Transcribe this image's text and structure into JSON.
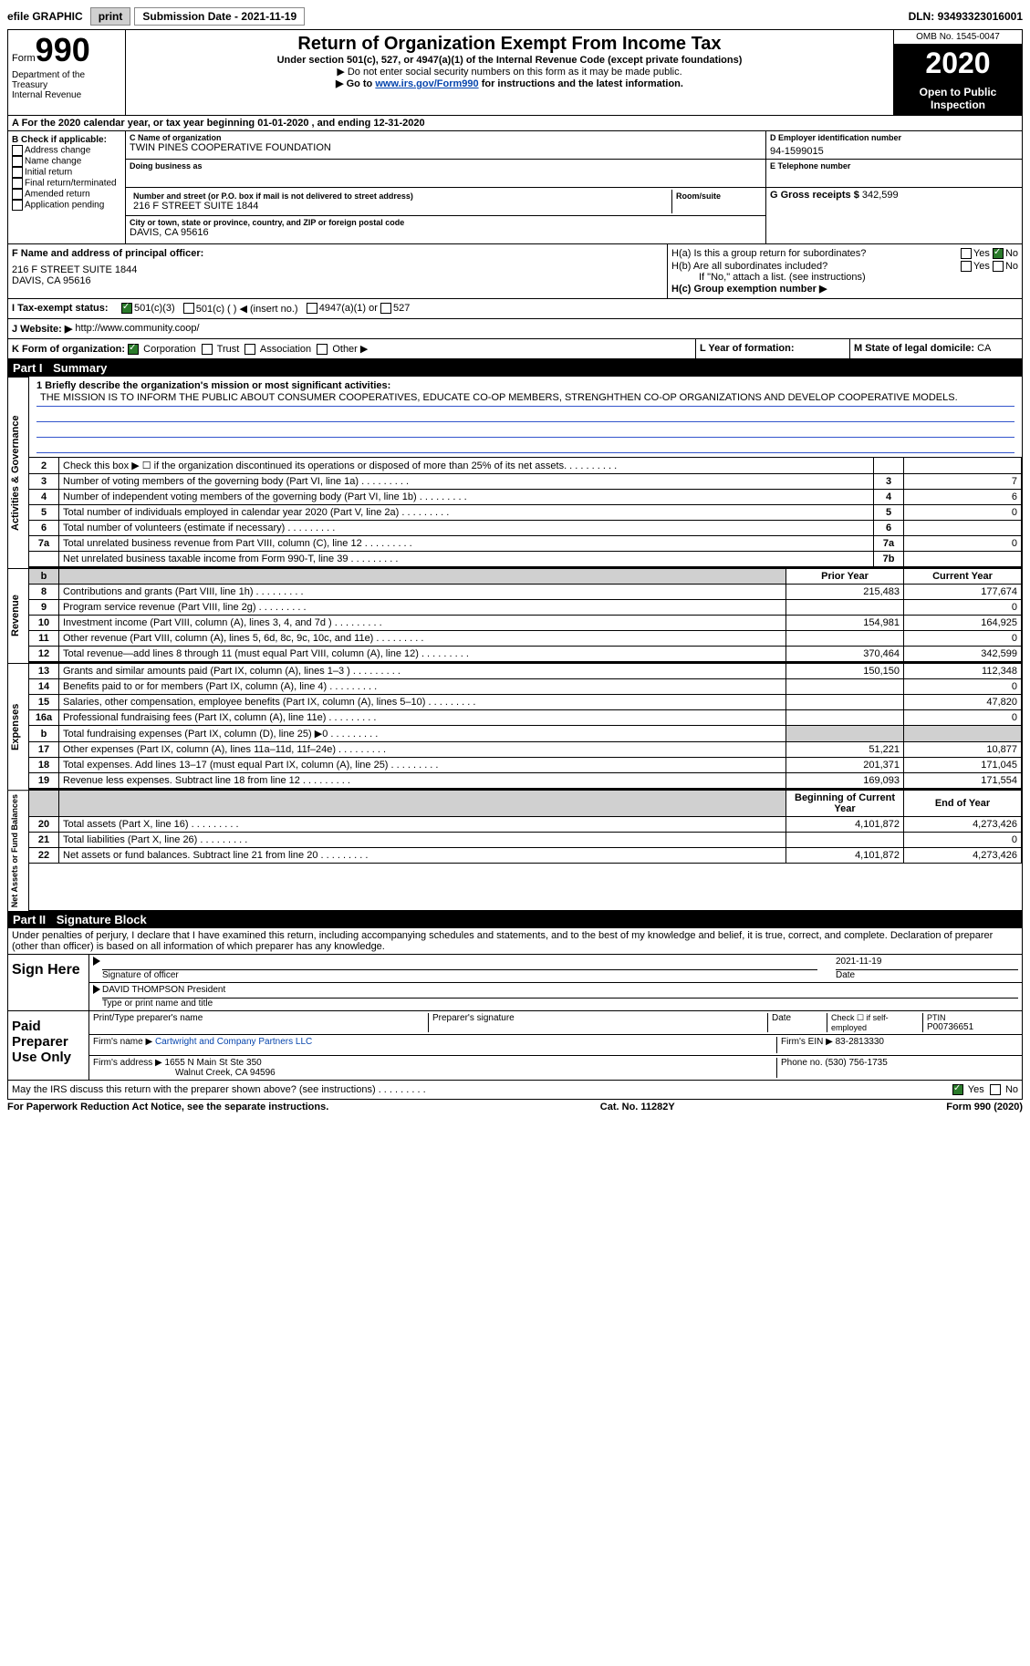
{
  "top": {
    "efile": "efile GRAPHIC",
    "print": "print",
    "sub_label": "Submission Date - ",
    "sub_date": "2021-11-19",
    "dln_label": "DLN: ",
    "dln": "93493323016001"
  },
  "header": {
    "form_label": "Form",
    "form_num": "990",
    "dept": "Department of the Treasury\nInternal Revenue",
    "title": "Return of Organization Exempt From Income Tax",
    "subtitle": "Under section 501(c), 527, or 4947(a)(1) of the Internal Revenue Code (except private foundations)",
    "note1": "▶ Do not enter social security numbers on this form as it may be made public.",
    "note2_pre": "▶ Go to ",
    "note2_link": "www.irs.gov/Form990",
    "note2_post": " for instructions and the latest information.",
    "omb": "OMB No. 1545-0047",
    "year": "2020",
    "open": "Open to Public Inspection"
  },
  "line_a": "A For the 2020 calendar year, or tax year beginning 01-01-2020    , and ending 12-31-2020",
  "b": {
    "hdr": "B Check if applicable:",
    "opts": [
      "Address change",
      "Name change",
      "Initial return",
      "Final return/terminated",
      "Amended return",
      "Application pending"
    ]
  },
  "c": {
    "name_hdr": "C Name of organization",
    "name": "TWIN PINES COOPERATIVE FOUNDATION",
    "dba_hdr": "Doing business as",
    "dba": "",
    "addr_hdr": "Number and street (or P.O. box if mail is not delivered to street address)",
    "room_hdr": "Room/suite",
    "addr": "216 F STREET SUITE 1844",
    "city_hdr": "City or town, state or province, country, and ZIP or foreign postal code",
    "city": "DAVIS, CA  95616"
  },
  "d": {
    "hdr": "D Employer identification number",
    "ein": "94-1599015"
  },
  "e": {
    "hdr": "E Telephone number",
    "val": ""
  },
  "g": {
    "label": "G Gross receipts $ ",
    "val": "342,599"
  },
  "f": {
    "hdr": "F  Name and address of principal officer:",
    "name": "",
    "addr": "216 F STREET SUITE 1844\nDAVIS, CA  95616"
  },
  "h": {
    "a": "H(a)  Is this a group return for subordinates?",
    "b": "H(b)  Are all subordinates included?",
    "b_note": "If \"No,\" attach a list. (see instructions)",
    "c": "H(c)  Group exemption number ▶",
    "yes": "Yes",
    "no": "No"
  },
  "i": {
    "label": "I    Tax-exempt status:",
    "o1": "501(c)(3)",
    "o2": "501(c) (   ) ◀ (insert no.)",
    "o3": "4947(a)(1) or",
    "o4": "527"
  },
  "j": {
    "label": "J   Website: ▶",
    "url": "http://www.community.coop/"
  },
  "k": {
    "label": "K Form of organization:",
    "o1": "Corporation",
    "o2": "Trust",
    "o3": "Association",
    "o4": "Other ▶"
  },
  "l": {
    "label": "L Year of formation:",
    "val": ""
  },
  "m": {
    "label": "M State of legal domicile: ",
    "val": "CA"
  },
  "part1": {
    "hdr": "Part I",
    "title": "Summary"
  },
  "mission": {
    "q": "1  Briefly describe the organization's mission or most significant activities:",
    "text": "THE MISSION IS TO INFORM THE PUBLIC ABOUT CONSUMER COOPERATIVES, EDUCATE CO-OP MEMBERS, STRENGHTHEN CO-OP ORGANIZATIONS AND DEVELOP COOPERATIVE MODELS."
  },
  "gov_lines": [
    {
      "n": "2",
      "d": "Check this box ▶ ☐  if the organization discontinued its operations or disposed of more than 25% of its net assets.",
      "b": "",
      "v": ""
    },
    {
      "n": "3",
      "d": "Number of voting members of the governing body (Part VI, line 1a)",
      "b": "3",
      "v": "7"
    },
    {
      "n": "4",
      "d": "Number of independent voting members of the governing body (Part VI, line 1b)",
      "b": "4",
      "v": "6"
    },
    {
      "n": "5",
      "d": "Total number of individuals employed in calendar year 2020 (Part V, line 2a)",
      "b": "5",
      "v": "0"
    },
    {
      "n": "6",
      "d": "Total number of volunteers (estimate if necessary)",
      "b": "6",
      "v": ""
    },
    {
      "n": "7a",
      "d": "Total unrelated business revenue from Part VIII, column (C), line 12",
      "b": "7a",
      "v": "0"
    },
    {
      "n": "",
      "d": "Net unrelated business taxable income from Form 990-T, line 39",
      "b": "7b",
      "v": ""
    }
  ],
  "cols": {
    "b": "b",
    "py": "Prior Year",
    "cy": "Current Year"
  },
  "rev_lines": [
    {
      "n": "8",
      "d": "Contributions and grants (Part VIII, line 1h)",
      "py": "215,483",
      "cy": "177,674"
    },
    {
      "n": "9",
      "d": "Program service revenue (Part VIII, line 2g)",
      "py": "",
      "cy": "0"
    },
    {
      "n": "10",
      "d": "Investment income (Part VIII, column (A), lines 3, 4, and 7d )",
      "py": "154,981",
      "cy": "164,925"
    },
    {
      "n": "11",
      "d": "Other revenue (Part VIII, column (A), lines 5, 6d, 8c, 9c, 10c, and 11e)",
      "py": "",
      "cy": "0"
    },
    {
      "n": "12",
      "d": "Total revenue—add lines 8 through 11 (must equal Part VIII, column (A), line 12)",
      "py": "370,464",
      "cy": "342,599"
    }
  ],
  "exp_lines": [
    {
      "n": "13",
      "d": "Grants and similar amounts paid (Part IX, column (A), lines 1–3 )",
      "py": "150,150",
      "cy": "112,348"
    },
    {
      "n": "14",
      "d": "Benefits paid to or for members (Part IX, column (A), line 4)",
      "py": "",
      "cy": "0"
    },
    {
      "n": "15",
      "d": "Salaries, other compensation, employee benefits (Part IX, column (A), lines 5–10)",
      "py": "",
      "cy": "47,820"
    },
    {
      "n": "16a",
      "d": "Professional fundraising fees (Part IX, column (A), line 11e)",
      "py": "",
      "cy": "0"
    },
    {
      "n": "b",
      "d": "Total fundraising expenses (Part IX, column (D), line 25) ▶0",
      "py": "grey",
      "cy": "grey"
    },
    {
      "n": "17",
      "d": "Other expenses (Part IX, column (A), lines 11a–11d, 11f–24e)",
      "py": "51,221",
      "cy": "10,877"
    },
    {
      "n": "18",
      "d": "Total expenses. Add lines 13–17 (must equal Part IX, column (A), line 25)",
      "py": "201,371",
      "cy": "171,045"
    },
    {
      "n": "19",
      "d": "Revenue less expenses. Subtract line 18 from line 12",
      "py": "169,093",
      "cy": "171,554"
    }
  ],
  "na_cols": {
    "b": "Beginning of Current Year",
    "e": "End of Year"
  },
  "na_lines": [
    {
      "n": "20",
      "d": "Total assets (Part X, line 16)",
      "py": "4,101,872",
      "cy": "4,273,426"
    },
    {
      "n": "21",
      "d": "Total liabilities (Part X, line 26)",
      "py": "",
      "cy": "0"
    },
    {
      "n": "22",
      "d": "Net assets or fund balances. Subtract line 21 from line 20",
      "py": "4,101,872",
      "cy": "4,273,426"
    }
  ],
  "part2": {
    "hdr": "Part II",
    "title": "Signature Block"
  },
  "penalty": "Under penalties of perjury, I declare that I have examined this return, including accompanying schedules and statements, and to the best of my knowledge and belief, it is true, correct, and complete. Declaration of preparer (other than officer) is based on all information of which preparer has any knowledge.",
  "sign": {
    "label": "Sign Here",
    "sig_of": "Signature of officer",
    "date_lbl": "Date",
    "date": "2021-11-19",
    "name": "DAVID THOMPSON  President",
    "name_lbl": "Type or print name and title"
  },
  "prep": {
    "label": "Paid Preparer Use Only",
    "c1": "Print/Type preparer's name",
    "c2": "Preparer's signature",
    "c3": "Date",
    "c4_chk": "Check ☐ if self-employed",
    "c4_ptin_lbl": "PTIN",
    "c4_ptin": "P00736651",
    "firm_lbl": "Firm's name    ▶",
    "firm": "Cartwright and Company Partners LLC",
    "ein_lbl": "Firm's EIN ▶",
    "ein": "83-2813330",
    "addr_lbl": "Firm's address ▶",
    "addr1": "1655 N Main St Ste 350",
    "addr2": "Walnut Creek, CA  94596",
    "phone_lbl": "Phone no. ",
    "phone": "(530) 756-1735"
  },
  "discuss": "May the IRS discuss this return with the preparer shown above? (see instructions)",
  "footer": {
    "left": "For Paperwork Reduction Act Notice, see the separate instructions.",
    "mid": "Cat. No. 11282Y",
    "right": "Form 990 (2020)"
  },
  "styling": {
    "colors": {
      "black": "#000000",
      "white": "#ffffff",
      "grey_btn": "#d0d0d0",
      "link": "#0645ad",
      "rule_blue": "#3355cc",
      "check_green": "#2a7a2a"
    },
    "fontsizes": {
      "body": 12,
      "title": 20,
      "year": 32,
      "form_num": 36,
      "small": 10,
      "table": 11
    }
  }
}
